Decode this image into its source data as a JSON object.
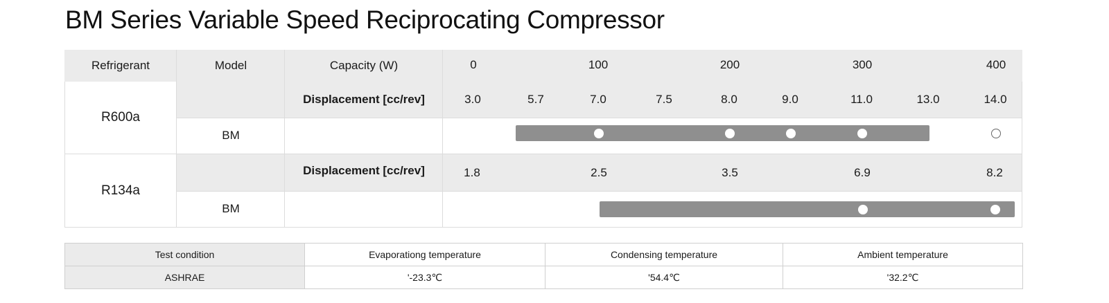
{
  "title": "BM Series Variable Speed Reciprocating Compressor",
  "header": {
    "refrigerant": "Refrigerant",
    "model": "Model",
    "capacity": "Capacity (W)",
    "capacity_ticks": [
      "0",
      "100",
      "200",
      "300",
      "400"
    ]
  },
  "rows": [
    {
      "refrigerant": "R600a",
      "displacement_label": "Displacement [cc/rev]",
      "displacements": [
        "3.0",
        "5.7",
        "7.0",
        "7.5",
        "8.0",
        "9.0",
        "11.0",
        "13.0",
        "14.0"
      ],
      "model": "BM",
      "range_from": "5.7",
      "range_to": "13.0",
      "available_models": [
        "7.0",
        "8.0",
        "9.0",
        "11.0"
      ],
      "developing_models": [
        "14.0"
      ]
    },
    {
      "refrigerant": "R134a",
      "displacement_label": "Displacement [cc/rev]",
      "displacements": [
        "1.8",
        "2.5",
        "3.5",
        "6.9",
        "8.2"
      ],
      "model": "BM",
      "range_from": "2.5",
      "range_to": "8.2",
      "available_models": [
        "6.9",
        "8.2"
      ],
      "developing_models": []
    }
  ],
  "test_condition": {
    "headers": [
      "Test condition",
      "Evaporationg temperature",
      "Condensing temperature",
      "Ambient temperature"
    ],
    "values": [
      "ASHRAE",
      "'-23.3℃",
      "'54.4℃",
      "'32.2℃"
    ]
  },
  "colors": {
    "header_bg": "#ebebeb",
    "bar": "#8f8f8f",
    "dot_filled": "#ffffff"
  }
}
